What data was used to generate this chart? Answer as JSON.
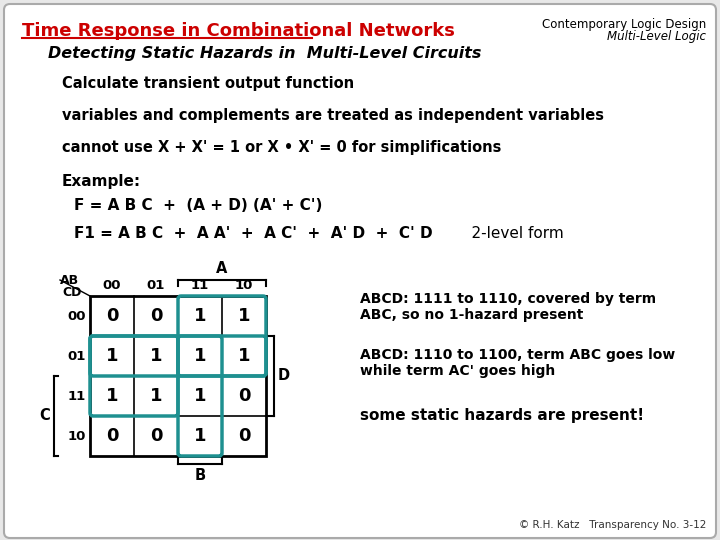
{
  "bg_color": "#e8e8e8",
  "slide_bg": "#ffffff",
  "title": "Time Response in Combinational Networks",
  "title_color": "#cc0000",
  "subtitle": "Detecting Static Hazards in  Multi-Level Circuits",
  "top_right_line1": "Contemporary Logic Design",
  "top_right_line2": "Multi-Level Logic",
  "bullet1": "Calculate transient output function",
  "bullet2": "variables and complements are treated as independent variables",
  "bullet3": "cannot use X + X' = 1 or X • X' = 0 for simplifications",
  "example_label": "Example:",
  "formula1": "F = A B C  +  (A + D) (A' + C')",
  "formula2": "F1 = A B C  +  A A'  +  A C'  +  A' D  +  C' D",
  "formula2_suffix": "    2-level form",
  "kmap_values": [
    [
      0,
      0,
      1,
      1
    ],
    [
      1,
      1,
      1,
      1
    ],
    [
      1,
      1,
      1,
      0
    ],
    [
      0,
      0,
      1,
      0
    ]
  ],
  "kmap_rows": [
    "00",
    "01",
    "11",
    "10"
  ],
  "kmap_cols": [
    "00",
    "01",
    "11",
    "10"
  ],
  "kmap_row_label": "CD",
  "kmap_col_label": "AB",
  "kmap_A_label": "A",
  "kmap_B_label": "B",
  "kmap_C_label": "C",
  "kmap_D_label": "D",
  "note1_line1": "ABCD: 1111 to 1110, covered by term",
  "note1_line2": "ABC, so no 1-hazard present",
  "note2_line1": "ABCD: 1110 to 1100, term ABC goes low",
  "note2_line2": "while term AC' goes high",
  "note3": "some static hazards are present!",
  "footer": "© R.H. Katz   Transparency No. 3-12",
  "loop_color": "#1e9090"
}
